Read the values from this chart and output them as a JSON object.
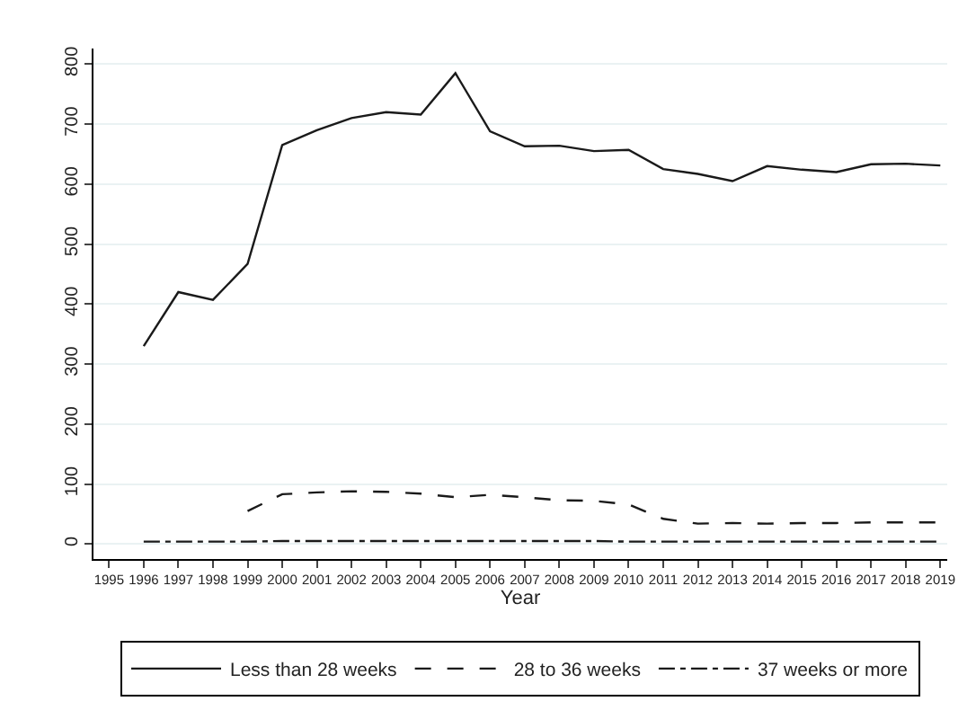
{
  "chart_data": {
    "type": "line",
    "xlabel": "Year",
    "x": [
      1996,
      1997,
      1998,
      1999,
      2000,
      2001,
      2002,
      2003,
      2004,
      2005,
      2006,
      2007,
      2008,
      2009,
      2010,
      2011,
      2012,
      2013,
      2014,
      2015,
      2016,
      2017,
      2018,
      2019
    ],
    "series": [
      {
        "name": "Less than 28 weeks",
        "color": "#1a1a1a",
        "line_style": "solid",
        "values": [
          330,
          420,
          407,
          467,
          665,
          690,
          710,
          720,
          716,
          785,
          688,
          663,
          664,
          655,
          657,
          625,
          617,
          605,
          630,
          624,
          620,
          633,
          634,
          631
        ]
      },
      {
        "name": "28 to 36 weeks",
        "color": "#1a1a1a",
        "line_style": "dashed",
        "values": [
          null,
          null,
          null,
          55,
          83,
          86,
          88,
          87,
          84,
          78,
          82,
          78,
          73,
          72,
          66,
          42,
          34,
          35,
          34,
          35,
          35,
          36,
          36,
          36
        ]
      },
      {
        "name": "37 weeks or more",
        "color": "#1a1a1a",
        "line_style": "dashdot",
        "values": [
          4,
          4,
          4,
          4,
          5,
          5,
          5,
          5,
          5,
          5,
          5,
          5,
          5,
          5,
          4,
          4,
          4,
          4,
          4,
          4,
          4,
          4,
          4,
          4
        ]
      }
    ],
    "xlim": [
      1994.55,
      2019.2
    ],
    "ylim": [
      -25,
      826
    ],
    "xticks": [
      1995,
      1996,
      1997,
      1998,
      1999,
      2000,
      2001,
      2002,
      2003,
      2004,
      2005,
      2006,
      2007,
      2008,
      2009,
      2010,
      2011,
      2012,
      2013,
      2014,
      2015,
      2016,
      2017,
      2018,
      2019
    ],
    "yticks": [
      0,
      100,
      200,
      300,
      400,
      500,
      600,
      700,
      800
    ],
    "grid": "y",
    "legend": "bottom",
    "marker": "none"
  }
}
